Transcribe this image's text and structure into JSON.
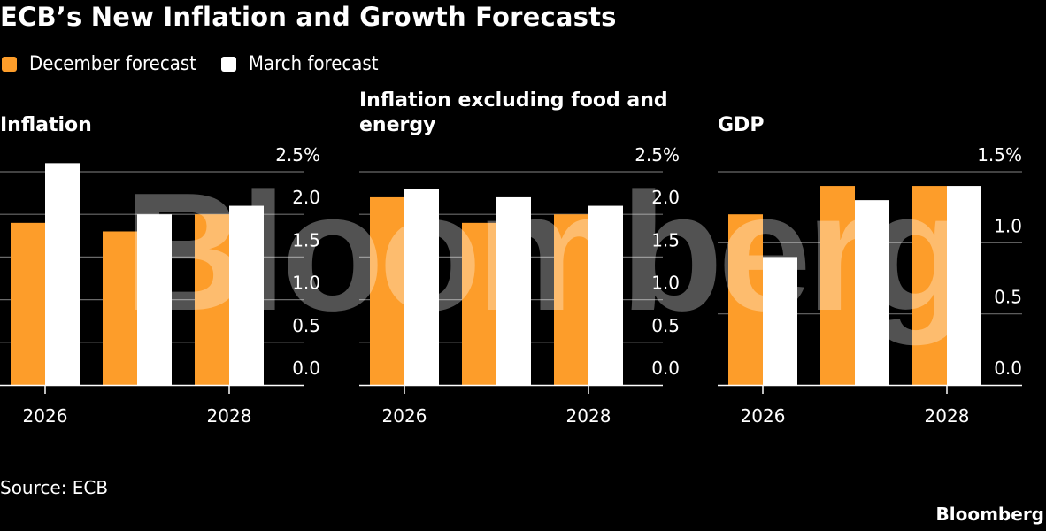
{
  "title": "ECB’s New Inflation and Growth Forecasts",
  "legend": [
    {
      "label": "December forecast",
      "color": "#FD9D2A"
    },
    {
      "label": "March forecast",
      "color": "#FFFFFF"
    }
  ],
  "source": "Source: ECB",
  "brand": "Bloomberg",
  "watermark": "Bloomberg",
  "chart_data": [
    {
      "type": "bar",
      "title": "Inflation",
      "categories": [
        "2026",
        "2027",
        "2028"
      ],
      "tick_labels_x": [
        "2026",
        "",
        "2028"
      ],
      "series": [
        {
          "name": "December forecast",
          "color": "#FD9D2A",
          "values": [
            1.9,
            1.8,
            2.0
          ]
        },
        {
          "name": "March forecast",
          "color": "#FFFFFF",
          "values": [
            2.6,
            2.0,
            2.1
          ]
        }
      ],
      "ylim": [
        0,
        2.5
      ],
      "yticks": [
        "0.0",
        "0.5",
        "1.0",
        "1.5",
        "2.0",
        "2.5%"
      ],
      "ytick_values": [
        0,
        0.5,
        1.0,
        1.5,
        2.0,
        2.5
      ],
      "grid": true,
      "yaxis_side": "right",
      "xlabel": "",
      "ylabel": ""
    },
    {
      "type": "bar",
      "title": "Inflation excluding food and energy",
      "title_lines": [
        "Inflation excluding food and",
        "energy"
      ],
      "categories": [
        "2026",
        "2027",
        "2028"
      ],
      "tick_labels_x": [
        "2026",
        "",
        "2028"
      ],
      "series": [
        {
          "name": "December forecast",
          "color": "#FD9D2A",
          "values": [
            2.2,
            1.9,
            2.0
          ]
        },
        {
          "name": "March forecast",
          "color": "#FFFFFF",
          "values": [
            2.3,
            2.2,
            2.1
          ]
        }
      ],
      "ylim": [
        0,
        2.5
      ],
      "yticks": [
        "0.0",
        "0.5",
        "1.0",
        "1.5",
        "2.0",
        "2.5%"
      ],
      "ytick_values": [
        0,
        0.5,
        1.0,
        1.5,
        2.0,
        2.5
      ],
      "grid": true,
      "yaxis_side": "right",
      "xlabel": "",
      "ylabel": ""
    },
    {
      "type": "bar",
      "title": "GDP",
      "categories": [
        "2026",
        "2027",
        "2028"
      ],
      "tick_labels_x": [
        "2026",
        "",
        "2028"
      ],
      "series": [
        {
          "name": "December forecast",
          "color": "#FD9D2A",
          "values": [
            1.2,
            1.4,
            1.4
          ]
        },
        {
          "name": "March forecast",
          "color": "#FFFFFF",
          "values": [
            0.9,
            1.3,
            1.4
          ]
        }
      ],
      "ylim": [
        0,
        1.5
      ],
      "yticks": [
        "0.0",
        "0.5",
        "1.0",
        "1.5%"
      ],
      "ytick_values": [
        0,
        0.5,
        1.0,
        1.5
      ],
      "grid": true,
      "yaxis_side": "right",
      "xlabel": "",
      "ylabel": ""
    }
  ]
}
